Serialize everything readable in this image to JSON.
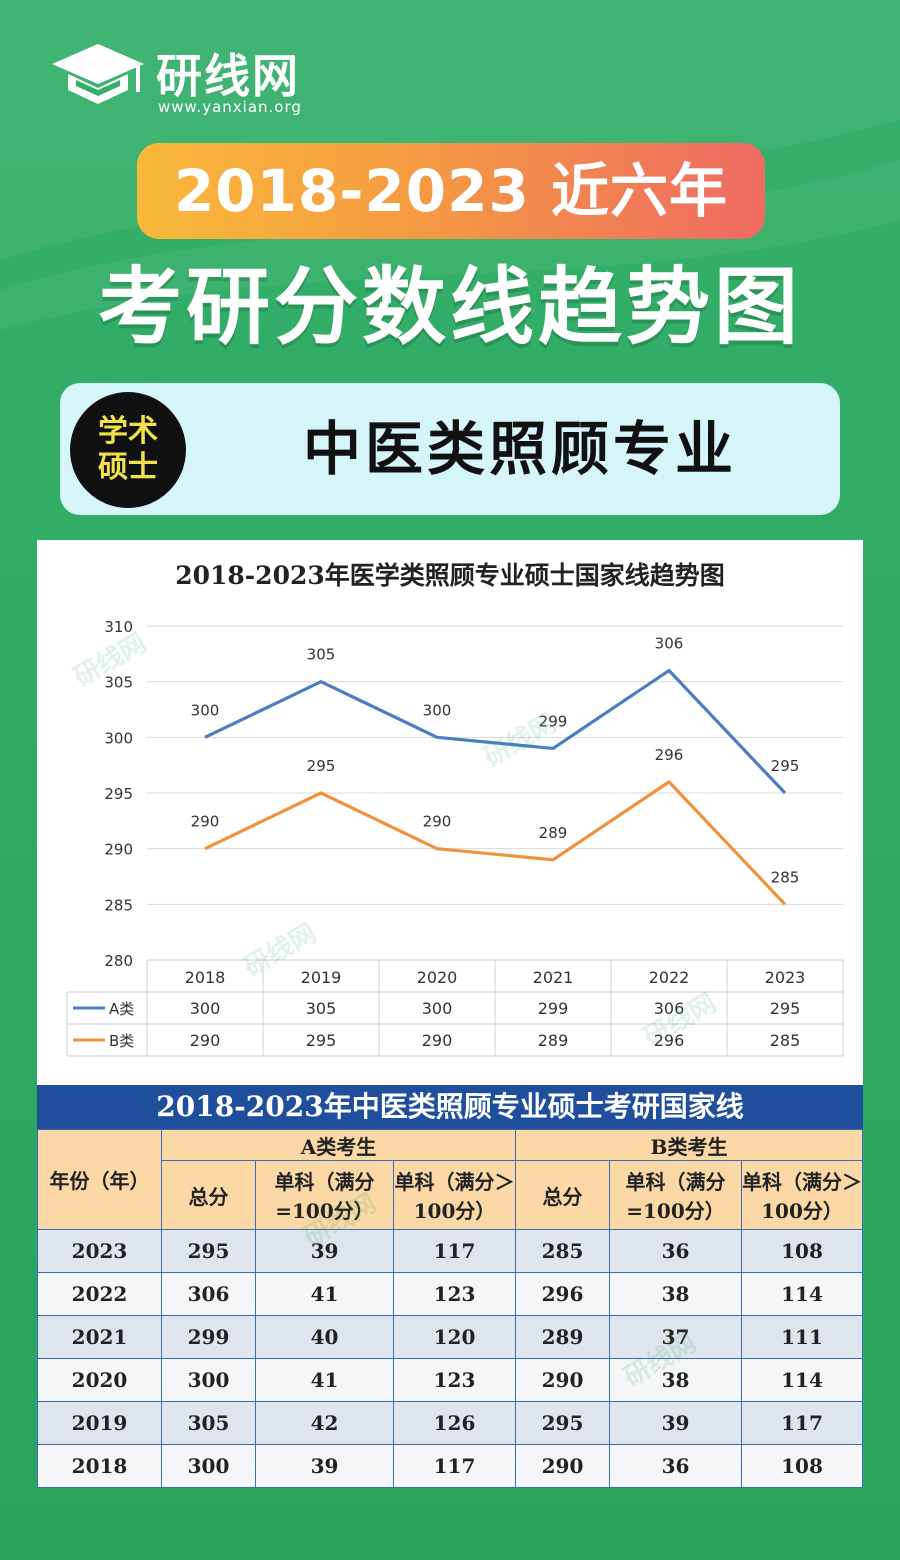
{
  "brand": {
    "name": "研线网",
    "url": "www.yanxian.org"
  },
  "header": {
    "years_badge": "2018-2023 近六年",
    "main_title": "考研分数线趋势图"
  },
  "subject": {
    "degree_line1": "学术",
    "degree_line2": "硕士",
    "title": "中医类照顾专业"
  },
  "colors": {
    "accent_green": "#2ea862",
    "series_a": "#4a7ebf",
    "series_b": "#f0923c",
    "table_header": "#1f4e9c"
  },
  "chart_data": {
    "type": "line",
    "title": "2018-2023年医学类照顾专业硕士国家线趋势图",
    "categories": [
      "2018",
      "2019",
      "2020",
      "2021",
      "2022",
      "2023"
    ],
    "series": [
      {
        "name": "A类",
        "values": [
          300,
          305,
          300,
          299,
          306,
          295
        ]
      },
      {
        "name": "B类",
        "values": [
          290,
          295,
          290,
          289,
          296,
          285
        ]
      }
    ],
    "ylim": [
      280,
      310
    ],
    "yticks": [
      "310",
      "305",
      "300",
      "295",
      "290",
      "285",
      "280"
    ],
    "grid": true,
    "legend": "data-table"
  },
  "table": {
    "title": "2018-2023年中医类照顾专业硕士考研国家线",
    "year_header": "年份（年）",
    "group_a": "A类考生",
    "group_b": "B类考生",
    "col_total": "总分",
    "col_single_100": "单科（满分=100分）",
    "col_single_gt100": "单科（满分＞100分）",
    "rows": [
      {
        "year": "2023",
        "a_total": "295",
        "a_s100": "39",
        "a_sgt": "117",
        "b_total": "285",
        "b_s100": "36",
        "b_sgt": "108"
      },
      {
        "year": "2022",
        "a_total": "306",
        "a_s100": "41",
        "a_sgt": "123",
        "b_total": "296",
        "b_s100": "38",
        "b_sgt": "114"
      },
      {
        "year": "2021",
        "a_total": "299",
        "a_s100": "40",
        "a_sgt": "120",
        "b_total": "289",
        "b_s100": "37",
        "b_sgt": "111"
      },
      {
        "year": "2020",
        "a_total": "300",
        "a_s100": "41",
        "a_sgt": "123",
        "b_total": "290",
        "b_s100": "38",
        "b_sgt": "114"
      },
      {
        "year": "2019",
        "a_total": "305",
        "a_s100": "42",
        "a_sgt": "126",
        "b_total": "295",
        "b_s100": "39",
        "b_sgt": "117"
      },
      {
        "year": "2018",
        "a_total": "300",
        "a_s100": "39",
        "a_sgt": "117",
        "b_total": "290",
        "b_s100": "36",
        "b_sgt": "108"
      }
    ]
  }
}
